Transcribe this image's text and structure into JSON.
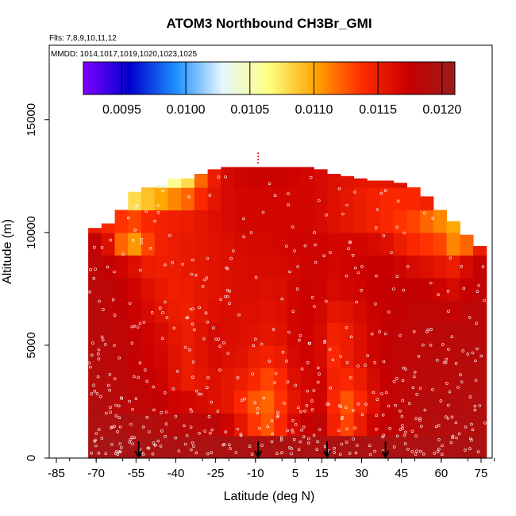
{
  "chart_data": {
    "type": "heatmap",
    "title": "ATOM3 Northbound CH3Br_GMI",
    "subtitle_flights": "Flts: 7,8,9,10,11,12",
    "subtitle_dates": "MMDD: 1014,1017,1019,1020,1023,1025",
    "xlabel": "Latitude (deg N)",
    "ylabel": "Altitude (m)",
    "xlim": [
      -85,
      85
    ],
    "ylim": [
      0,
      17500
    ],
    "x_ticks": [
      -85,
      -70,
      -55,
      -40,
      -25,
      -10,
      5,
      15,
      30,
      45,
      60,
      75
    ],
    "y_ticks": [
      0,
      5000,
      10000,
      15000
    ],
    "colorbar": {
      "range": [
        0.0092,
        0.0121
      ],
      "ticks": [
        "0.0095",
        "0.0100",
        "0.0105",
        "0.0110",
        "0.0115",
        "0.0120"
      ],
      "colors": [
        "#7f00ff",
        "#0000cd",
        "#1e90ff",
        "#e6f7ff",
        "#ffff80",
        "#ffa500",
        "#ff2a00",
        "#c80000",
        "#9b1c1c"
      ]
    },
    "profile_markers_lat": [
      -54,
      -9,
      17,
      39
    ],
    "column_edges": [
      -73,
      -68,
      -63,
      -58,
      -53,
      -48,
      -43,
      -38,
      -33,
      -28,
      -23,
      -18,
      -13,
      -8,
      -3,
      2,
      7,
      12,
      17,
      22,
      27,
      32,
      37,
      42,
      47,
      52,
      57,
      62,
      67,
      72,
      77
    ],
    "top_altitude": [
      10200,
      10400,
      11000,
      11800,
      12000,
      12100,
      12400,
      12400,
      12600,
      12800,
      12900,
      12900,
      12900,
      12900,
      12900,
      12900,
      12900,
      12800,
      12600,
      12500,
      12400,
      12300,
      12300,
      12200,
      12000,
      11600,
      11000,
      10500,
      9900,
      9400
    ],
    "altitude_bins": [
      0,
      1000,
      2000,
      3000,
      4000,
      5000,
      6000,
      7000,
      8000,
      9000,
      10000,
      11000,
      12000,
      13000
    ],
    "concentration_grid": [
      [
        0.01198,
        0.01199,
        0.012,
        0.01198,
        0.01197,
        0.01198,
        0.01196,
        0.01196,
        0.01196,
        0.01196,
        0.01196,
        0.01196,
        0.01196,
        0.01196,
        0.01196,
        0.01196,
        0.01196,
        0.01196,
        0.01196,
        0.01196,
        0.01196,
        0.01196,
        0.01196,
        0.01196,
        0.01196,
        0.01196,
        0.01196,
        0.01196,
        0.01196,
        0.01196
      ],
      [
        0.01195,
        0.01194,
        0.01193,
        0.01192,
        0.0119,
        0.01188,
        0.01186,
        0.01185,
        0.01184,
        0.01183,
        0.0117,
        0.01155,
        0.01135,
        0.01125,
        0.0114,
        0.01165,
        0.01175,
        0.0118,
        0.01145,
        0.0113,
        0.0115,
        0.0117,
        0.01178,
        0.01182,
        0.01185,
        0.01188,
        0.0119,
        0.0119,
        0.01192,
        0.01192
      ],
      [
        0.0119,
        0.01188,
        0.01186,
        0.01183,
        0.0118,
        0.01178,
        0.0117,
        0.01168,
        0.01165,
        0.0116,
        0.01155,
        0.0114,
        0.01125,
        0.0112,
        0.01135,
        0.01155,
        0.01165,
        0.0117,
        0.0114,
        0.01125,
        0.0114,
        0.0116,
        0.01175,
        0.0118,
        0.01185,
        0.01188,
        0.01188,
        0.01188,
        0.0119,
        0.0119
      ],
      [
        0.01188,
        0.01186,
        0.01184,
        0.0118,
        0.01175,
        0.0117,
        0.0116,
        0.0115,
        0.01155,
        0.0116,
        0.01155,
        0.0115,
        0.0114,
        0.0113,
        0.0114,
        0.0116,
        0.01168,
        0.0117,
        0.01145,
        0.0114,
        0.0115,
        0.01165,
        0.01175,
        0.0118,
        0.01185,
        0.01186,
        0.01186,
        0.01186,
        0.01188,
        0.01188
      ],
      [
        0.01188,
        0.01186,
        0.01182,
        0.01178,
        0.01172,
        0.01168,
        0.01158,
        0.0115,
        0.01158,
        0.01165,
        0.0116,
        0.01158,
        0.0115,
        0.01145,
        0.0115,
        0.01165,
        0.0117,
        0.01165,
        0.0114,
        0.0115,
        0.0116,
        0.0117,
        0.01178,
        0.0118,
        0.01182,
        0.01184,
        0.01186,
        0.01186,
        0.01188,
        0.01188
      ],
      [
        0.01186,
        0.01184,
        0.0118,
        0.01176,
        0.0117,
        0.01165,
        0.01155,
        0.0115,
        0.01158,
        0.01165,
        0.01162,
        0.0116,
        0.01158,
        0.01155,
        0.01158,
        0.01168,
        0.01172,
        0.01165,
        0.01145,
        0.0115,
        0.0116,
        0.0117,
        0.01176,
        0.0118,
        0.01182,
        0.01184,
        0.01184,
        0.01186,
        0.01186,
        0.01186
      ],
      [
        0.01185,
        0.01182,
        0.01178,
        0.01172,
        0.01165,
        0.01158,
        0.0115,
        0.01148,
        0.01155,
        0.0116,
        0.01162,
        0.0116,
        0.0116,
        0.01158,
        0.0116,
        0.01168,
        0.01172,
        0.01168,
        0.01155,
        0.01158,
        0.01165,
        0.01172,
        0.01176,
        0.01178,
        0.0118,
        0.01182,
        0.0118,
        0.01178,
        0.01182,
        0.01184
      ],
      [
        0.01184,
        0.01182,
        0.01176,
        0.0117,
        0.0116,
        0.01152,
        0.01148,
        0.0115,
        0.01155,
        0.01158,
        0.0116,
        0.01162,
        0.01162,
        0.0116,
        0.01162,
        0.01168,
        0.01172,
        0.0117,
        0.01165,
        0.01168,
        0.0117,
        0.01174,
        0.01176,
        0.01176,
        0.01176,
        0.01176,
        0.0117,
        0.01165,
        0.01175,
        0.0118
      ],
      [
        0.01182,
        0.01178,
        0.0117,
        0.0116,
        0.0115,
        0.01148,
        0.0115,
        0.01152,
        0.01155,
        0.01158,
        0.0116,
        0.01162,
        0.01164,
        0.01164,
        0.01165,
        0.01168,
        0.0117,
        0.0117,
        0.01168,
        0.0117,
        0.01172,
        0.01174,
        0.01174,
        0.0117,
        0.01165,
        0.0116,
        0.01155,
        0.0115,
        0.01165,
        0.01175
      ],
      [
        0.01178,
        0.0116,
        0.0112,
        0.01105,
        0.0113,
        0.01145,
        0.0115,
        0.01152,
        0.01155,
        0.01158,
        0.0116,
        0.01164,
        0.01166,
        0.01166,
        0.01168,
        0.0117,
        0.0117,
        0.0117,
        0.01168,
        0.01168,
        0.01168,
        0.01165,
        0.0116,
        0.0115,
        0.0114,
        0.01135,
        0.0113,
        0.0111,
        0.0112,
        0.0115
      ],
      [
        0.0115,
        0.0114,
        0.01135,
        0.0113,
        0.0114,
        0.01145,
        0.01148,
        0.0115,
        0.01155,
        0.0116,
        0.01165,
        0.01168,
        0.01168,
        0.01168,
        0.01168,
        0.01168,
        0.01168,
        0.01165,
        0.0116,
        0.01155,
        0.0115,
        0.01145,
        0.0114,
        0.01135,
        0.0113,
        0.0112,
        0.0111,
        0.011,
        0.011,
        0.011
      ],
      [
        0.0112,
        0.0111,
        0.0109,
        0.0108,
        0.0109,
        0.011,
        0.0111,
        0.0112,
        0.0114,
        0.01155,
        0.01165,
        0.01168,
        0.01168,
        0.01168,
        0.01168,
        0.01168,
        0.01168,
        0.01165,
        0.0116,
        0.01155,
        0.0115,
        0.01145,
        0.0114,
        0.0114,
        0.0114,
        0.01145,
        0.0115,
        0.0115,
        0.0115,
        0.0115
      ],
      [
        0.0112,
        0.011,
        0.0103,
        0.0102,
        0.01025,
        0.0104,
        0.0106,
        0.0108,
        0.0112,
        0.0115,
        0.01165,
        0.0117,
        0.01172,
        0.01172,
        0.01172,
        0.0117,
        0.01168,
        0.01165,
        0.0116,
        0.01158,
        0.01155,
        0.01155,
        0.01155,
        0.01158,
        0.0116,
        0.01165,
        0.01168,
        0.0117,
        0.0117,
        0.0117
      ],
      [
        0.0112,
        0.011,
        0.0104,
        0.0103,
        0.0103,
        0.0104,
        0.0106,
        0.0109,
        0.0113,
        0.0116,
        0.0117,
        0.01175,
        0.01178,
        0.01178,
        0.01178,
        0.01175,
        0.01172,
        0.0117,
        0.01168,
        0.01165,
        0.01165,
        0.01165,
        0.01168,
        0.0117,
        0.01172,
        0.01174,
        0.01176,
        0.01176,
        0.01176,
        0.01176
      ]
    ],
    "grid": false,
    "legend_placement": "top-inside"
  }
}
